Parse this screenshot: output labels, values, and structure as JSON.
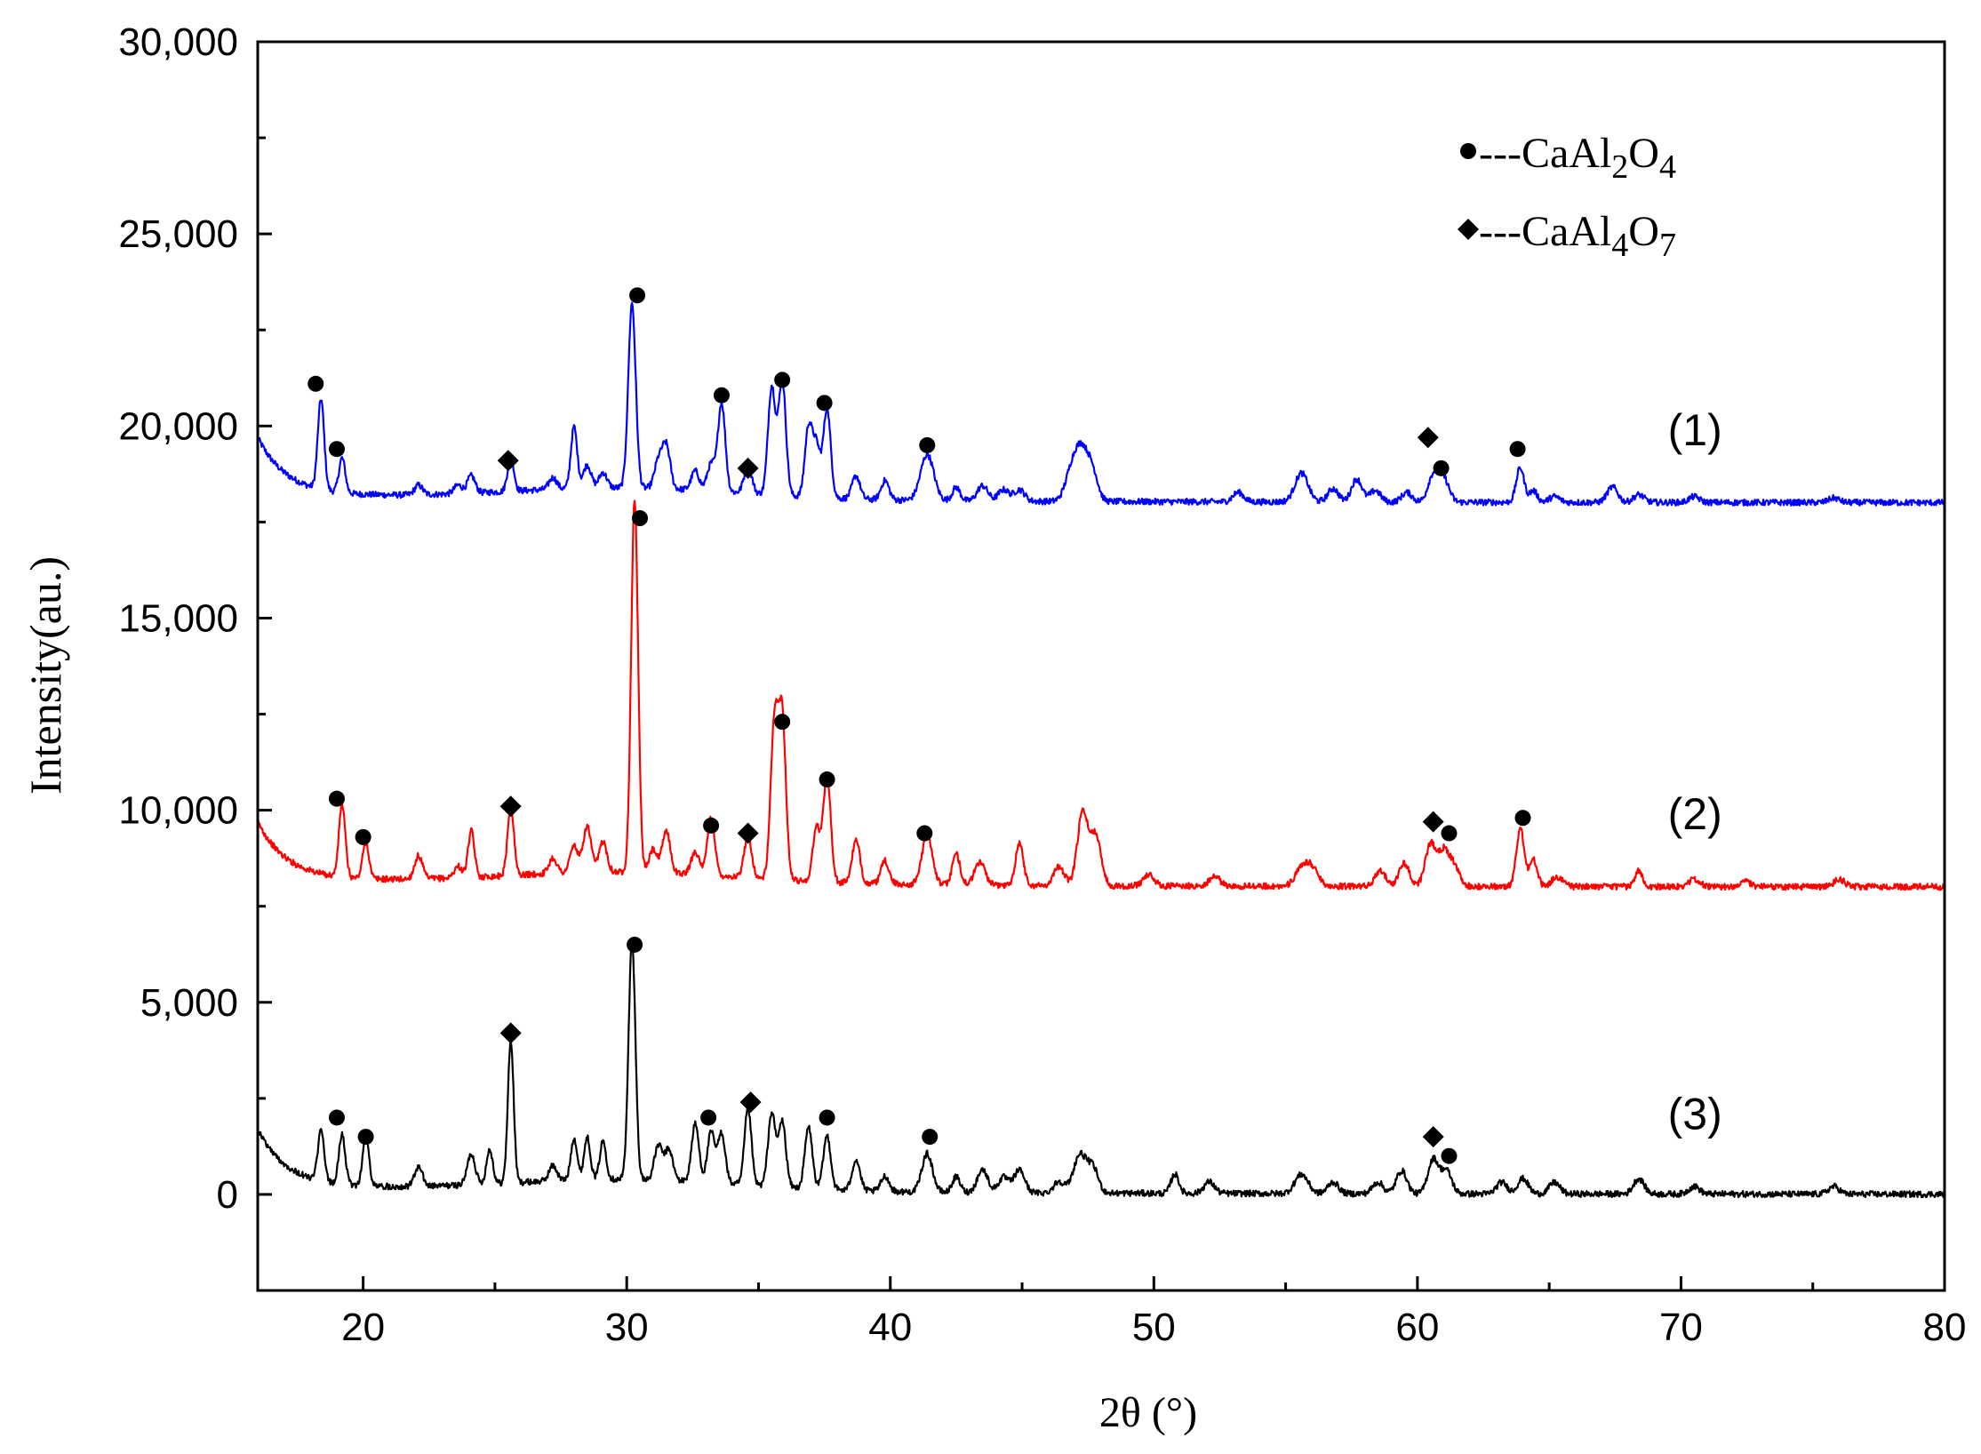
{
  "chart_data": {
    "type": "line",
    "xlabel": "2θ (°)",
    "ylabel": "Intensity(au.)",
    "xlim": [
      16,
      80
    ],
    "ylim": [
      -2500,
      30000
    ],
    "x_ticks": [
      20,
      30,
      40,
      50,
      60,
      70,
      80
    ],
    "y_ticks": [
      0,
      5000,
      10000,
      15000,
      20000,
      25000,
      30000
    ],
    "x_tick_labels": [
      "20",
      "30",
      "40",
      "50",
      "60",
      "70",
      "80"
    ],
    "y_tick_labels": [
      "0",
      "5,000",
      "10,000",
      "15,000",
      "20,000",
      "25,000",
      "30,000"
    ],
    "grid": false,
    "legend": {
      "placement": "top-right",
      "entries": [
        {
          "marker": "circle",
          "label_main": "---CaAl",
          "sub1": "2",
          "mid": "O",
          "sub2": "4"
        },
        {
          "marker": "diamond",
          "label_main": "---CaAl",
          "sub1": "4",
          "mid": "O",
          "sub2": "7"
        }
      ]
    },
    "series": [
      {
        "name": "(1)",
        "color": "#0000ff",
        "baseline": 18000,
        "peaks": [
          [
            18.4,
            2350,
            0.12
          ],
          [
            19.2,
            900,
            0.12
          ],
          [
            22.1,
            250,
            0.15
          ],
          [
            23.6,
            220,
            0.15
          ],
          [
            24.1,
            450,
            0.15
          ],
          [
            25.6,
            900,
            0.12
          ],
          [
            27.2,
            300,
            0.15
          ],
          [
            28.0,
            1600,
            0.12
          ],
          [
            28.5,
            600,
            0.15
          ],
          [
            29.1,
            400,
            0.15
          ],
          [
            30.2,
            4800,
            0.14
          ],
          [
            31.2,
            700,
            0.15
          ],
          [
            31.5,
            1100,
            0.15
          ],
          [
            32.6,
            500,
            0.15
          ],
          [
            33.2,
            700,
            0.15
          ],
          [
            33.6,
            2300,
            0.14
          ],
          [
            34.6,
            700,
            0.15
          ],
          [
            35.5,
            2800,
            0.14
          ],
          [
            35.9,
            3000,
            0.14
          ],
          [
            36.9,
            1800,
            0.14
          ],
          [
            37.2,
            1300,
            0.14
          ],
          [
            37.6,
            2300,
            0.14
          ],
          [
            38.7,
            600,
            0.15
          ],
          [
            39.8,
            500,
            0.15
          ],
          [
            41.4,
            1200,
            0.25
          ],
          [
            42.5,
            350,
            0.15
          ],
          [
            43.5,
            400,
            0.2
          ],
          [
            44.3,
            300,
            0.2
          ],
          [
            44.9,
            300,
            0.2
          ],
          [
            46.9,
            800,
            0.25
          ],
          [
            47.3,
            1200,
            0.25
          ],
          [
            47.7,
            600,
            0.2
          ],
          [
            53.2,
            250,
            0.2
          ],
          [
            55.6,
            750,
            0.25
          ],
          [
            56.8,
            350,
            0.2
          ],
          [
            57.7,
            600,
            0.2
          ],
          [
            58.4,
            300,
            0.2
          ],
          [
            59.6,
            250,
            0.2
          ],
          [
            60.6,
            700,
            0.2
          ],
          [
            61.0,
            600,
            0.2
          ],
          [
            63.9,
            900,
            0.15
          ],
          [
            64.4,
            300,
            0.15
          ],
          [
            65.2,
            150,
            0.2
          ],
          [
            67.4,
            400,
            0.2
          ],
          [
            68.4,
            200,
            0.2
          ],
          [
            70.5,
            150,
            0.2
          ],
          [
            75.8,
            120,
            0.2
          ]
        ],
        "annotations": [
          {
            "x": 18.2,
            "y": 21100,
            "marker": "circle"
          },
          {
            "x": 19.0,
            "y": 19400,
            "marker": "circle"
          },
          {
            "x": 25.5,
            "y": 19100,
            "marker": "diamond"
          },
          {
            "x": 30.4,
            "y": 23400,
            "marker": "circle"
          },
          {
            "x": 33.6,
            "y": 20800,
            "marker": "circle"
          },
          {
            "x": 34.6,
            "y": 18900,
            "marker": "diamond"
          },
          {
            "x": 35.9,
            "y": 21200,
            "marker": "circle"
          },
          {
            "x": 37.5,
            "y": 20600,
            "marker": "circle"
          },
          {
            "x": 41.4,
            "y": 19500,
            "marker": "circle"
          },
          {
            "x": 60.4,
            "y": 19700,
            "marker": "diamond"
          },
          {
            "x": 60.9,
            "y": 18900,
            "marker": "circle"
          },
          {
            "x": 63.8,
            "y": 19400,
            "marker": "circle"
          }
        ],
        "label": "(1)",
        "label_pos": [
          69.5,
          19500
        ]
      },
      {
        "name": "(2)",
        "color": "#ff0000",
        "baseline": 8000,
        "peaks": [
          [
            19.2,
            1900,
            0.12
          ],
          [
            20.1,
            950,
            0.12
          ],
          [
            22.1,
            600,
            0.15
          ],
          [
            23.6,
            300,
            0.15
          ],
          [
            24.1,
            1200,
            0.12
          ],
          [
            25.6,
            1800,
            0.12
          ],
          [
            27.2,
            400,
            0.15
          ],
          [
            28.0,
            700,
            0.15
          ],
          [
            28.5,
            1200,
            0.15
          ],
          [
            29.1,
            800,
            0.15
          ],
          [
            30.3,
            9700,
            0.13
          ],
          [
            31.0,
            600,
            0.15
          ],
          [
            31.5,
            1100,
            0.15
          ],
          [
            32.6,
            600,
            0.15
          ],
          [
            33.2,
            1500,
            0.14
          ],
          [
            34.6,
            1100,
            0.14
          ],
          [
            35.6,
            4000,
            0.14
          ],
          [
            35.9,
            4200,
            0.14
          ],
          [
            37.2,
            1400,
            0.14
          ],
          [
            37.6,
            2800,
            0.14
          ],
          [
            38.7,
            1100,
            0.15
          ],
          [
            39.8,
            600,
            0.15
          ],
          [
            41.4,
            1300,
            0.2
          ],
          [
            42.5,
            800,
            0.15
          ],
          [
            43.4,
            600,
            0.2
          ],
          [
            44.9,
            1100,
            0.15
          ],
          [
            46.4,
            500,
            0.2
          ],
          [
            47.3,
            1900,
            0.2
          ],
          [
            47.8,
            1300,
            0.2
          ],
          [
            49.8,
            300,
            0.2
          ],
          [
            52.3,
            250,
            0.2
          ],
          [
            55.6,
            400,
            0.25
          ],
          [
            56.0,
            450,
            0.25
          ],
          [
            58.6,
            400,
            0.2
          ],
          [
            59.5,
            600,
            0.2
          ],
          [
            60.5,
            1100,
            0.2
          ],
          [
            61.0,
            900,
            0.2
          ],
          [
            61.4,
            500,
            0.2
          ],
          [
            63.9,
            1500,
            0.15
          ],
          [
            64.4,
            700,
            0.15
          ],
          [
            65.3,
            250,
            0.2
          ],
          [
            68.4,
            400,
            0.15
          ],
          [
            70.5,
            200,
            0.2
          ],
          [
            72.4,
            150,
            0.2
          ],
          [
            76.0,
            200,
            0.2
          ]
        ],
        "annotations": [
          {
            "x": 19.0,
            "y": 10300,
            "marker": "circle"
          },
          {
            "x": 20.0,
            "y": 9300,
            "marker": "circle"
          },
          {
            "x": 25.6,
            "y": 10100,
            "marker": "diamond"
          },
          {
            "x": 30.5,
            "y": 17600,
            "marker": "circle"
          },
          {
            "x": 33.2,
            "y": 9600,
            "marker": "circle"
          },
          {
            "x": 34.6,
            "y": 9400,
            "marker": "diamond"
          },
          {
            "x": 35.9,
            "y": 12300,
            "marker": "circle"
          },
          {
            "x": 37.6,
            "y": 10800,
            "marker": "circle"
          },
          {
            "x": 41.3,
            "y": 9400,
            "marker": "circle"
          },
          {
            "x": 60.6,
            "y": 9700,
            "marker": "diamond"
          },
          {
            "x": 61.2,
            "y": 9400,
            "marker": "circle"
          },
          {
            "x": 64.0,
            "y": 9800,
            "marker": "circle"
          }
        ],
        "label": "(2)",
        "label_pos": [
          69.5,
          9500
        ]
      },
      {
        "name": "(3)",
        "color": "#000000",
        "baseline": 0,
        "peaks": [
          [
            18.4,
            1300,
            0.12
          ],
          [
            19.2,
            1300,
            0.12
          ],
          [
            20.1,
            1300,
            0.12
          ],
          [
            22.1,
            500,
            0.15
          ],
          [
            24.1,
            800,
            0.15
          ],
          [
            24.8,
            900,
            0.12
          ],
          [
            25.6,
            3700,
            0.11
          ],
          [
            27.2,
            400,
            0.15
          ],
          [
            28.0,
            1100,
            0.12
          ],
          [
            28.5,
            1100,
            0.12
          ],
          [
            29.1,
            1000,
            0.12
          ],
          [
            30.2,
            6200,
            0.13
          ],
          [
            31.2,
            900,
            0.15
          ],
          [
            31.6,
            800,
            0.15
          ],
          [
            32.6,
            1500,
            0.14
          ],
          [
            33.2,
            1300,
            0.14
          ],
          [
            33.6,
            1300,
            0.14
          ],
          [
            34.6,
            2000,
            0.13
          ],
          [
            35.5,
            1900,
            0.14
          ],
          [
            35.9,
            1700,
            0.14
          ],
          [
            36.9,
            1600,
            0.14
          ],
          [
            37.6,
            1400,
            0.14
          ],
          [
            38.7,
            800,
            0.15
          ],
          [
            39.8,
            400,
            0.15
          ],
          [
            41.4,
            1000,
            0.2
          ],
          [
            42.5,
            400,
            0.15
          ],
          [
            43.5,
            600,
            0.2
          ],
          [
            44.3,
            400,
            0.2
          ],
          [
            44.9,
            600,
            0.2
          ],
          [
            46.4,
            300,
            0.2
          ],
          [
            47.2,
            1000,
            0.25
          ],
          [
            47.7,
            600,
            0.2
          ],
          [
            50.8,
            500,
            0.15
          ],
          [
            52.1,
            300,
            0.2
          ],
          [
            55.6,
            500,
            0.25
          ],
          [
            56.8,
            300,
            0.2
          ],
          [
            58.5,
            300,
            0.2
          ],
          [
            59.4,
            600,
            0.2
          ],
          [
            60.6,
            900,
            0.2
          ],
          [
            61.1,
            600,
            0.2
          ],
          [
            63.2,
            300,
            0.2
          ],
          [
            64.0,
            400,
            0.2
          ],
          [
            65.2,
            300,
            0.2
          ],
          [
            68.4,
            400,
            0.2
          ],
          [
            70.5,
            200,
            0.2
          ],
          [
            75.8,
            200,
            0.2
          ]
        ],
        "annotations": [
          {
            "x": 19.0,
            "y": 2000,
            "marker": "circle"
          },
          {
            "x": 20.1,
            "y": 1500,
            "marker": "circle"
          },
          {
            "x": 25.6,
            "y": 4200,
            "marker": "diamond"
          },
          {
            "x": 30.3,
            "y": 6500,
            "marker": "circle"
          },
          {
            "x": 33.1,
            "y": 2000,
            "marker": "circle"
          },
          {
            "x": 34.7,
            "y": 2400,
            "marker": "diamond"
          },
          {
            "x": 37.6,
            "y": 2000,
            "marker": "circle"
          },
          {
            "x": 41.5,
            "y": 1500,
            "marker": "circle"
          },
          {
            "x": 60.6,
            "y": 1500,
            "marker": "diamond"
          },
          {
            "x": 61.2,
            "y": 1000,
            "marker": "circle"
          }
        ],
        "label": "(3)",
        "label_pos": [
          69.5,
          1700
        ]
      }
    ]
  }
}
